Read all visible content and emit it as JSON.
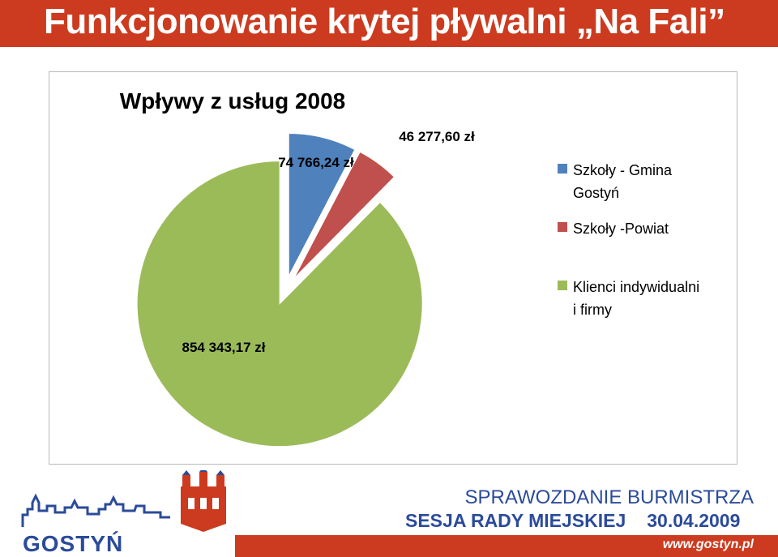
{
  "header": {
    "title": "Funkcjonowanie krytej pływalni „Na Fali”"
  },
  "chart_data": {
    "type": "pie",
    "title": "Wpływy z usług 2008",
    "slices": [
      {
        "label": "Szkoły - Gmina Gostyń",
        "value": 74766.24,
        "data_label": "74 766,24 zł",
        "color": "#4f81bd",
        "exploded": true
      },
      {
        "label": "Szkoły -Powiat",
        "value": 46277.6,
        "data_label": "46 277,60 zł",
        "color": "#c0504d",
        "exploded": true
      },
      {
        "label": "Klienci indywidualni i firmy",
        "value": 854343.17,
        "data_label": "854 343,17 zł",
        "color": "#9bbb59",
        "exploded": true
      }
    ],
    "legend": {
      "position": "right",
      "entries": [
        {
          "lines": [
            "Szkoły - Gmina",
            "Gostyń"
          ],
          "color": "#4f81bd"
        },
        {
          "lines": [
            "Szkoły -Powiat"
          ],
          "color": "#c0504d"
        },
        {
          "lines": [
            "Klienci indywidualni",
            "i firmy"
          ],
          "color": "#9bbb59"
        }
      ]
    }
  },
  "footer": {
    "line1": "SPRAWOZDANIE BURMISTRZA",
    "session": "SESJA RADY MIEJSKIEJ",
    "date": "30.04.2009",
    "url": "www.gostyn.pl",
    "logo_text": "GOSTYŃ"
  },
  "colors": {
    "accent_red": "#cc3b1f",
    "footer_blue": "#2b4b9a"
  }
}
